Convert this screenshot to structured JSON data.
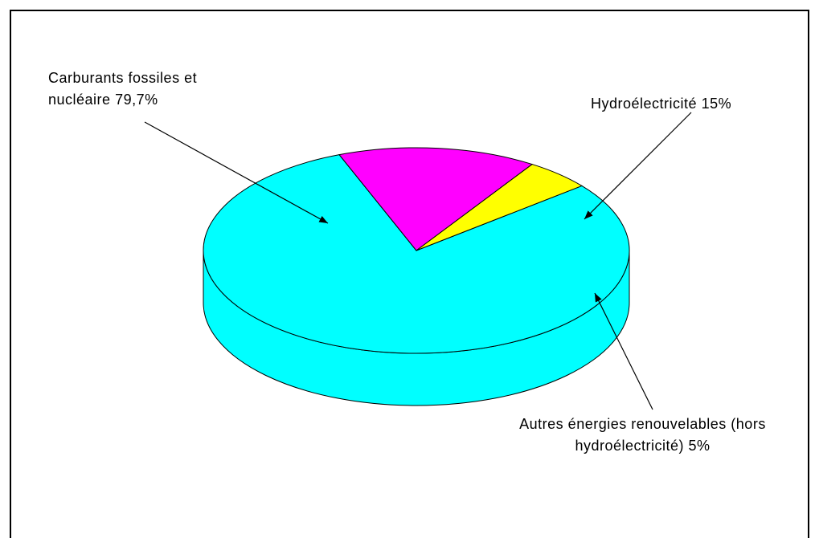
{
  "chart_data": {
    "type": "pie",
    "categories": [
      "Carburants fossiles et nucléaire",
      "Hydroélectricité",
      "Autres énergies renouvelables (hors hydroélectricité)"
    ],
    "values": [
      79.7,
      15,
      5
    ],
    "value_labels": [
      "79,7%",
      "15%",
      "5%"
    ],
    "colors": [
      "#00ffff",
      "#ff00ff",
      "#ffff00"
    ]
  }
}
